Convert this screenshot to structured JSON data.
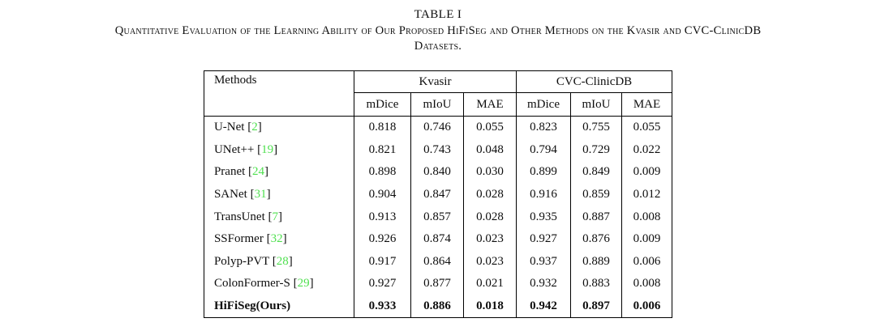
{
  "caption": {
    "label": "TABLE I",
    "line1": "Quantitative Evaluation of the Learning Ability of Our Proposed HiFiSeg and Other Methods on the Kvasir and CVC-ClinicDB",
    "line2": "Datasets."
  },
  "colors": {
    "citation_green": "#4fe04f",
    "text": "#0e0e0e",
    "border": "#000000"
  },
  "table": {
    "methods_header": "Methods",
    "cite_brackets": [
      "[",
      "]"
    ],
    "groups": [
      {
        "label": "Kvasir",
        "cols": [
          "mDice",
          "mIoU",
          "MAE"
        ]
      },
      {
        "label": "CVC-ClinicDB",
        "cols": [
          "mDice",
          "mIoU",
          "MAE"
        ]
      }
    ],
    "rows": [
      {
        "name": "U-Net",
        "cite": "2",
        "bold": false,
        "vals": [
          "0.818",
          "0.746",
          "0.055",
          "0.823",
          "0.755",
          "0.055"
        ]
      },
      {
        "name": "UNet++",
        "cite": "19",
        "bold": false,
        "vals": [
          "0.821",
          "0.743",
          "0.048",
          "0.794",
          "0.729",
          "0.022"
        ]
      },
      {
        "name": "Pranet",
        "cite": "24",
        "bold": false,
        "vals": [
          "0.898",
          "0.840",
          "0.030",
          "0.899",
          "0.849",
          "0.009"
        ]
      },
      {
        "name": "SANet",
        "cite": "31",
        "bold": false,
        "vals": [
          "0.904",
          "0.847",
          "0.028",
          "0.916",
          "0.859",
          "0.012"
        ]
      },
      {
        "name": "TransUnet",
        "cite": "7",
        "bold": false,
        "vals": [
          "0.913",
          "0.857",
          "0.028",
          "0.935",
          "0.887",
          "0.008"
        ]
      },
      {
        "name": "SSFormer",
        "cite": "32",
        "bold": false,
        "vals": [
          "0.926",
          "0.874",
          "0.023",
          "0.927",
          "0.876",
          "0.009"
        ]
      },
      {
        "name": "Polyp-PVT",
        "cite": "28",
        "bold": false,
        "vals": [
          "0.917",
          "0.864",
          "0.023",
          "0.937",
          "0.889",
          "0.006"
        ]
      },
      {
        "name": "ColonFormer-S",
        "cite": "29",
        "bold": false,
        "vals": [
          "0.927",
          "0.877",
          "0.021",
          "0.932",
          "0.883",
          "0.008"
        ]
      },
      {
        "name": "HiFiSeg(Ours)",
        "cite": "",
        "bold": true,
        "vals": [
          "0.933",
          "0.886",
          "0.018",
          "0.942",
          "0.897",
          "0.006"
        ]
      }
    ]
  }
}
